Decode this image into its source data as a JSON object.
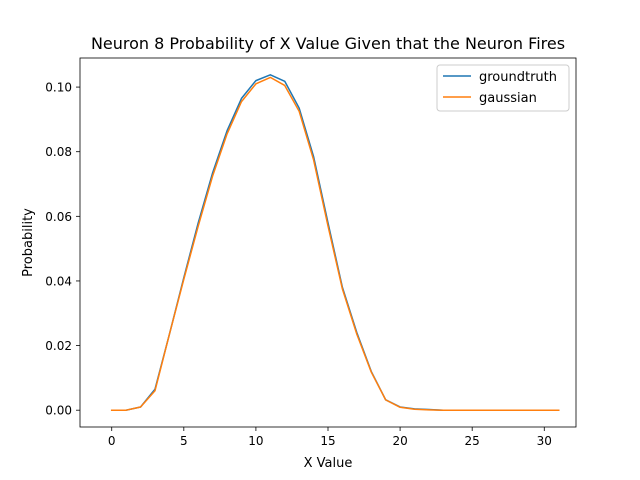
{
  "chart_data": {
    "type": "line",
    "title": "Neuron 8 Probability of X Value Given that the Neuron Fires",
    "xlabel": "X Value",
    "ylabel": "Probability",
    "xlim": [
      -2.2,
      32.2
    ],
    "ylim": [
      -0.0052,
      0.109
    ],
    "xticks": [
      0,
      5,
      10,
      15,
      20,
      25,
      30
    ],
    "xtick_labels": [
      "0",
      "5",
      "10",
      "15",
      "20",
      "25",
      "30"
    ],
    "yticks": [
      0,
      0.02,
      0.04,
      0.06,
      0.08,
      0.1
    ],
    "ytick_labels": [
      "0.00",
      "0.02",
      "0.04",
      "0.06",
      "0.08",
      "0.10"
    ],
    "grid": false,
    "legend_position": "top-right",
    "x": [
      0,
      1,
      2,
      3,
      4,
      5,
      6,
      7,
      8,
      9,
      10,
      11,
      12,
      13,
      14,
      15,
      16,
      17,
      18,
      19,
      20,
      21,
      22,
      23,
      24,
      25,
      26,
      27,
      28,
      29,
      30,
      31
    ],
    "series": [
      {
        "name": "groundtruth",
        "color": "#1f77b4",
        "values": [
          0.0,
          0.0,
          0.001,
          0.0065,
          0.0235,
          0.041,
          0.058,
          0.0735,
          0.0865,
          0.0965,
          0.102,
          0.1038,
          0.1018,
          0.0935,
          0.0785,
          0.058,
          0.038,
          0.024,
          0.012,
          0.0032,
          0.001,
          0.0004,
          0.0002,
          0.0,
          0.0,
          0.0,
          0.0,
          0.0,
          0.0,
          0.0,
          0.0,
          0.0
        ]
      },
      {
        "name": "gaussian",
        "color": "#ff7f0e",
        "values": [
          0.0,
          0.0,
          0.001,
          0.006,
          0.0235,
          0.0405,
          0.057,
          0.0725,
          0.0855,
          0.0955,
          0.101,
          0.103,
          0.1005,
          0.0925,
          0.0775,
          0.057,
          0.0375,
          0.0235,
          0.0118,
          0.0032,
          0.0009,
          0.0003,
          0.0001,
          0.0,
          0.0,
          0.0,
          0.0,
          0.0,
          0.0,
          0.0,
          0.0,
          0.0
        ]
      }
    ]
  }
}
